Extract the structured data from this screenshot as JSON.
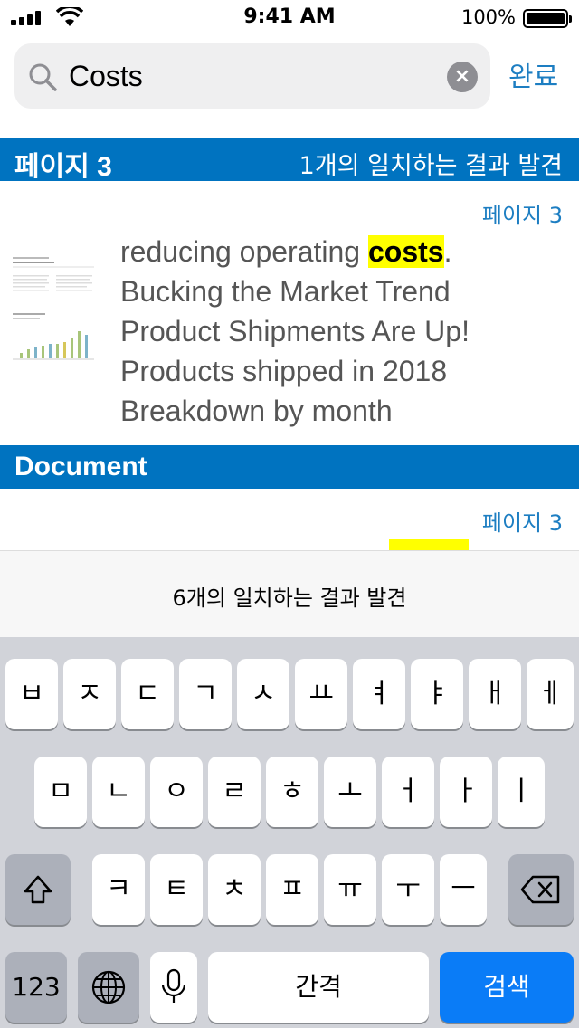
{
  "status": {
    "time": "9:41 AM",
    "battery": "100%"
  },
  "search": {
    "value": "Costs",
    "placeholder": "",
    "done_label": "완료",
    "clear_symbol": "×"
  },
  "sections": [
    {
      "title": "페이지 3",
      "count": "1개의 일치하는 결과 발견"
    },
    {
      "title": "Document"
    }
  ],
  "results": [
    {
      "page_label": "페이지 3",
      "line1_before": "reducing operating ",
      "line1_highlight": "costs",
      "line1_after": ".",
      "lines": [
        "Bucking the Market Trend",
        "Product Shipments Are Up!",
        "Products shipped in 2018",
        "Breakdown by month"
      ]
    },
    {
      "page_label": "페이지 3"
    }
  ],
  "match_bar": {
    "text": "6개의 일치하는 결과 발견"
  },
  "keyboard": {
    "row1": [
      "ㅂ",
      "ㅈ",
      "ㄷ",
      "ㄱ",
      "ㅅ",
      "ㅛ",
      "ㅕ",
      "ㅑ",
      "ㅐ",
      "ㅔ"
    ],
    "row2": [
      "ㅁ",
      "ㄴ",
      "ㅇ",
      "ㄹ",
      "ㅎ",
      "ㅗ",
      "ㅓ",
      "ㅏ",
      "ㅣ"
    ],
    "row3": [
      "ㅋ",
      "ㅌ",
      "ㅊ",
      "ㅍ",
      "ㅠ",
      "ㅜ",
      "ㅡ"
    ],
    "numbers_label": "123",
    "space_label": "간격",
    "search_label": "검색",
    "icons": {
      "shift": "shift-icon",
      "delete": "delete-icon",
      "globe": "globe-icon",
      "mic": "microphone-icon"
    }
  },
  "colors": {
    "accent": "#0073c0",
    "link": "#1d7ec2",
    "highlight": "#ffff00",
    "search_key": "#0a7cf7"
  }
}
